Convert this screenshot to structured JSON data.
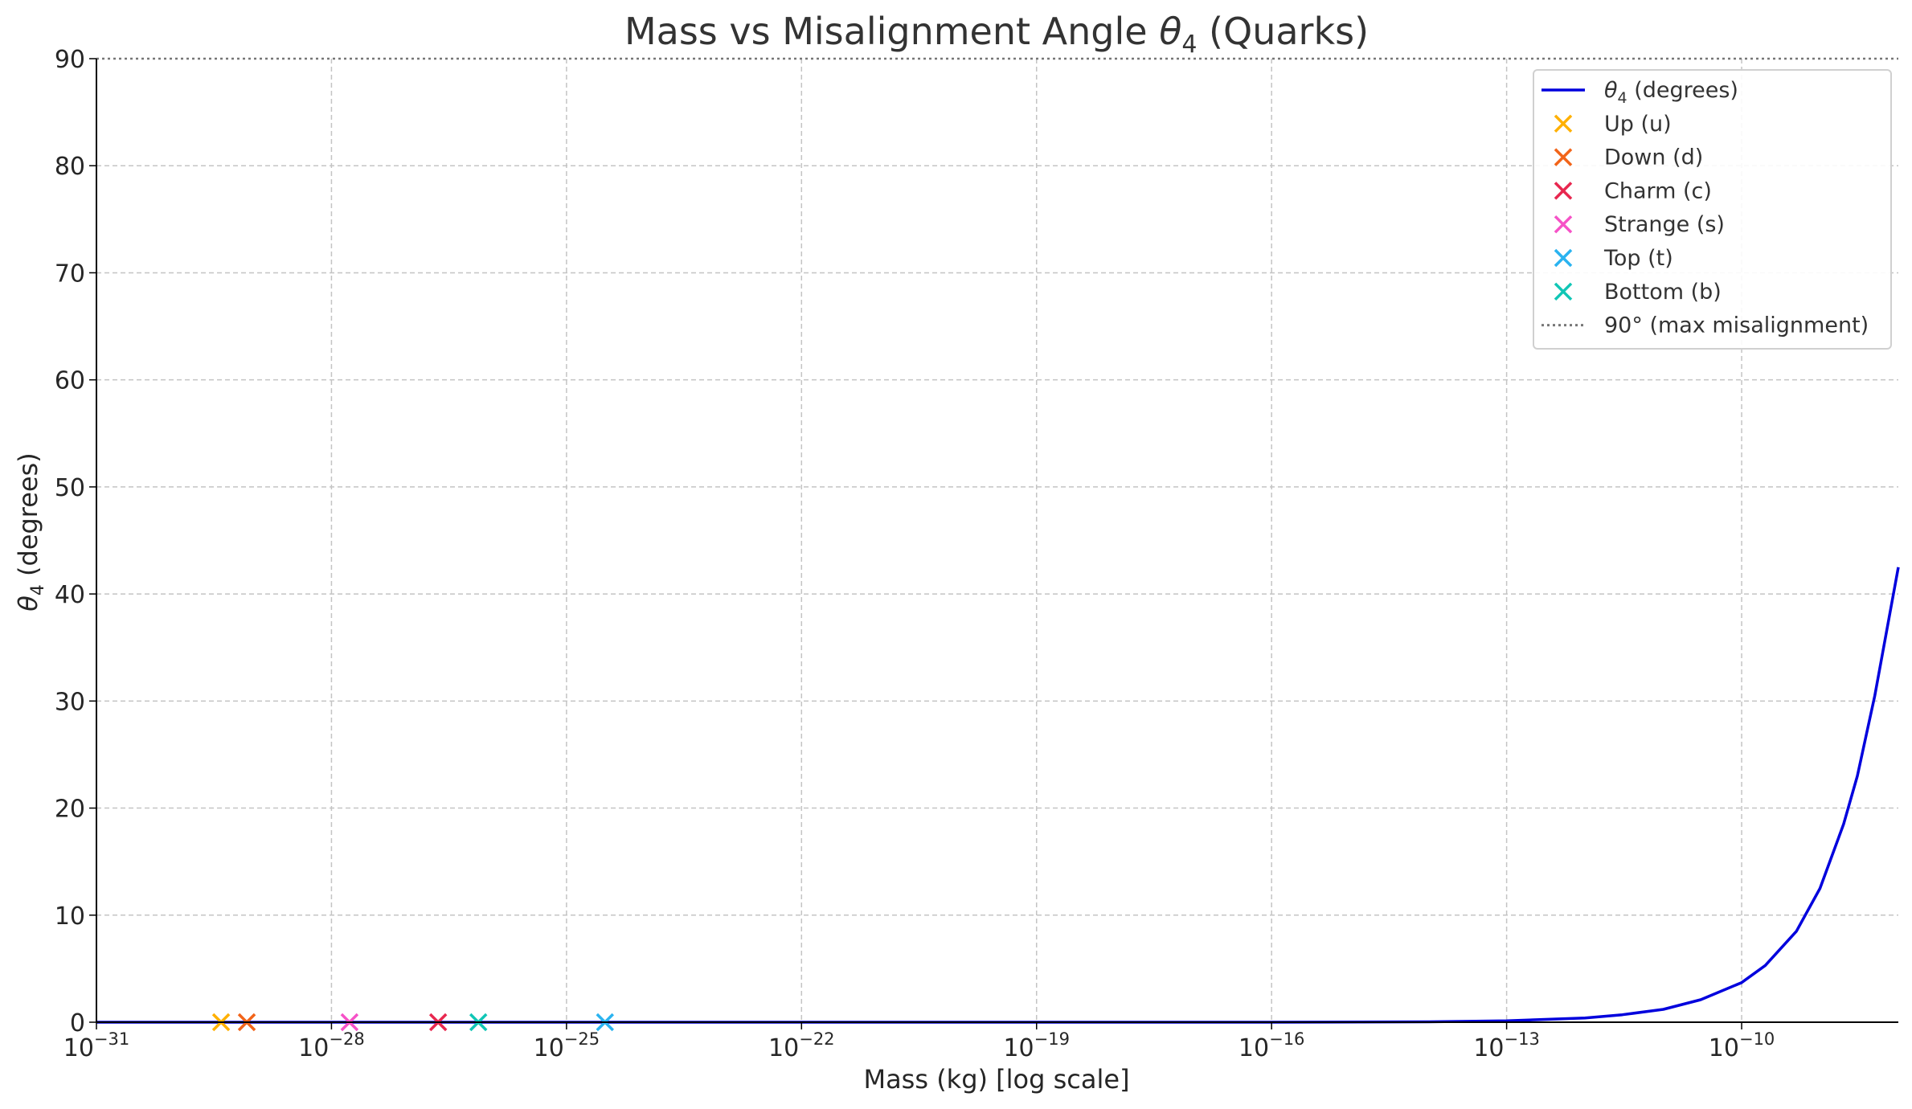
{
  "chart_data": {
    "type": "line",
    "title": {
      "main": "Mass vs Misalignment Angle ",
      "sym": "θ",
      "sub": "4",
      "tail": " (Quarks)"
    },
    "xlabel": "Mass (kg) [log scale]",
    "ylabel": {
      "sym": "θ",
      "sub": "4",
      "tail": " (degrees)"
    },
    "xscale": "log",
    "xlim": [
      1e-31,
      1e-08
    ],
    "ylim": [
      0,
      90
    ],
    "grid": true,
    "legend_position": "top-right",
    "x_ticks": [
      {
        "value": 1e-31,
        "base": "10",
        "exp": "−31"
      },
      {
        "value": 1e-28,
        "base": "10",
        "exp": "−28"
      },
      {
        "value": 1e-25,
        "base": "10",
        "exp": "−25"
      },
      {
        "value": 1e-22,
        "base": "10",
        "exp": "−22"
      },
      {
        "value": 1e-19,
        "base": "10",
        "exp": "−19"
      },
      {
        "value": 1e-16,
        "base": "10",
        "exp": "−16"
      },
      {
        "value": 1e-13,
        "base": "10",
        "exp": "−13"
      },
      {
        "value": 1e-10,
        "base": "10",
        "exp": "−10"
      }
    ],
    "y_ticks": [
      {
        "value": 0,
        "label": "0"
      },
      {
        "value": 10,
        "label": "10"
      },
      {
        "value": 20,
        "label": "20"
      },
      {
        "value": 30,
        "label": "30"
      },
      {
        "value": 40,
        "label": "40"
      },
      {
        "value": 50,
        "label": "50"
      },
      {
        "value": 60,
        "label": "60"
      },
      {
        "value": 70,
        "label": "70"
      },
      {
        "value": 80,
        "label": "80"
      },
      {
        "value": 90,
        "label": "90"
      }
    ],
    "line_series": {
      "legend_sym": "θ",
      "legend_sub": "4",
      "legend_tail": " (degrees)",
      "color": "#0000dd",
      "x": [
        1e-31,
        1e-16,
        1e-14,
        1e-13,
        1e-12,
        3e-12,
        1e-11,
        3e-11,
        1e-10,
        2e-10,
        5e-10,
        1e-09,
        2e-09,
        3e-09,
        5e-09,
        1e-08
      ],
      "y": [
        0,
        0.003,
        0.04,
        0.13,
        0.4,
        0.7,
        1.2,
        2.1,
        3.7,
        5.3,
        8.5,
        12.5,
        18.5,
        23.0,
        30.5,
        42.5
      ]
    },
    "scatter_series": [
      {
        "name": "Up (u)",
        "color": "#ffb000",
        "x": 3.9e-30,
        "y": 0
      },
      {
        "name": "Down (d)",
        "color": "#f26419",
        "x": 8.3e-30,
        "y": 0
      },
      {
        "name": "Charm (c)",
        "color": "#e8274f",
        "x": 2.3e-27,
        "y": 0
      },
      {
        "name": "Strange (s)",
        "color": "#f652c7",
        "x": 1.7e-28,
        "y": 0
      },
      {
        "name": "Top (t)",
        "color": "#2ab3f0",
        "x": 3.1e-25,
        "y": 0
      },
      {
        "name": "Bottom (b)",
        "color": "#10c6b6",
        "x": 7.5e-27,
        "y": 0
      }
    ],
    "reference_line": {
      "label": "90° (max misalignment)",
      "y": 90,
      "color": "#777777"
    }
  }
}
